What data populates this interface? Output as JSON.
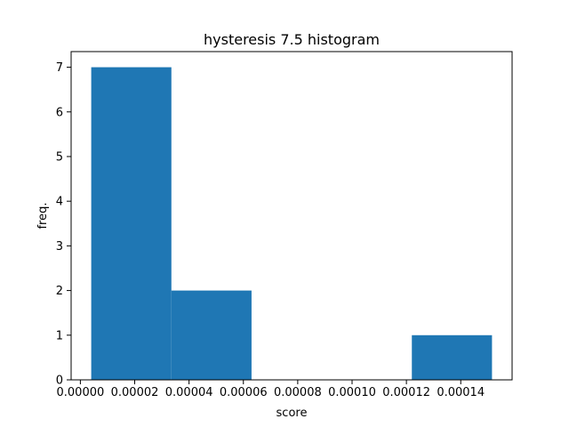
{
  "chart_data": {
    "type": "bar",
    "title": "hysteresis 7.5 histogram",
    "xlabel": "score",
    "ylabel": "freq.",
    "bins": [
      {
        "x0": 4e-06,
        "x1": 3.35e-05,
        "count": 7
      },
      {
        "x0": 3.35e-05,
        "x1": 6.3e-05,
        "count": 2
      },
      {
        "x0": 6.3e-05,
        "x1": 9.25e-05,
        "count": 0
      },
      {
        "x0": 9.25e-05,
        "x1": 0.000122,
        "count": 0
      },
      {
        "x0": 0.000122,
        "x1": 0.0001515,
        "count": 1
      }
    ],
    "xlim": [
      -3.4e-06,
      0.0001589
    ],
    "ylim": [
      0,
      7.35
    ],
    "xticks": [
      0.0,
      2e-05,
      4e-05,
      6e-05,
      8e-05,
      0.0001,
      0.00012,
      0.00014
    ],
    "xtick_labels": [
      "0.00000",
      "0.00002",
      "0.00004",
      "0.00006",
      "0.00008",
      "0.00010",
      "0.00012",
      "0.00014"
    ],
    "yticks": [
      0,
      1,
      2,
      3,
      4,
      5,
      6,
      7
    ],
    "ytick_labels": [
      "0",
      "1",
      "2",
      "3",
      "4",
      "5",
      "6",
      "7"
    ],
    "bar_color": "#1f77b4",
    "grid": false,
    "legend": "none"
  }
}
